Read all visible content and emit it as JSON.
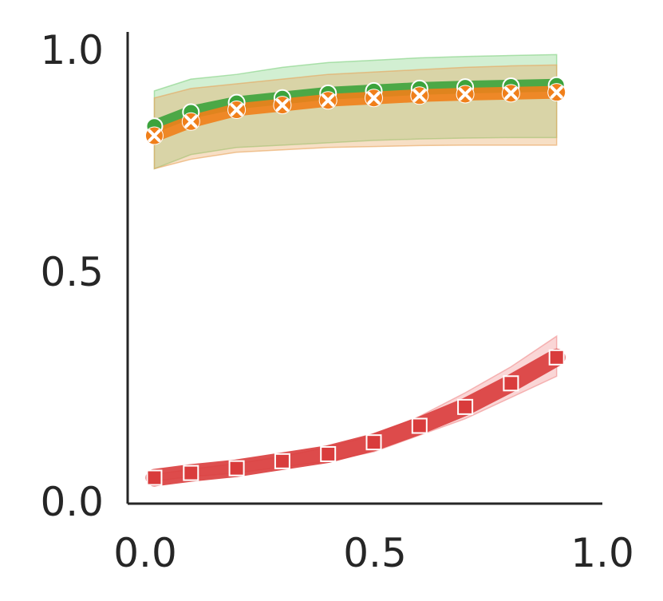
{
  "chart_data": {
    "type": "line",
    "title": "",
    "xlabel": "",
    "ylabel": "",
    "xlim": [
      0.0,
      1.0
    ],
    "ylim": [
      0.0,
      1.0
    ],
    "xticks": [
      "0.0",
      "0.5",
      "1.0"
    ],
    "yticks": [
      "0.0",
      "0.5",
      "1.0"
    ],
    "grid": false,
    "x": [
      0.02,
      0.1,
      0.2,
      0.3,
      0.4,
      0.5,
      0.6,
      0.7,
      0.8,
      0.9
    ],
    "series": [
      {
        "color": "#3ca33c",
        "marker": "circle",
        "values": [
          0.8,
          0.83,
          0.85,
          0.86,
          0.87,
          0.875,
          0.88,
          0.883,
          0.885,
          0.887
        ],
        "band_upper": [
          0.875,
          0.9,
          0.91,
          0.925,
          0.935,
          0.94,
          0.945,
          0.948,
          0.95,
          0.952
        ],
        "band_lower": [
          0.71,
          0.74,
          0.755,
          0.76,
          0.765,
          0.77,
          0.773,
          0.775,
          0.776,
          0.776
        ],
        "band_color": "#7fd17f"
      },
      {
        "color": "#f07f1a",
        "marker": "x",
        "values": [
          0.78,
          0.81,
          0.835,
          0.845,
          0.855,
          0.86,
          0.865,
          0.868,
          0.87,
          0.872
        ],
        "band_upper": [
          0.86,
          0.88,
          0.89,
          0.9,
          0.91,
          0.915,
          0.92,
          0.925,
          0.928,
          0.93
        ],
        "band_lower": [
          0.71,
          0.73,
          0.745,
          0.75,
          0.755,
          0.757,
          0.759,
          0.76,
          0.76,
          0.76
        ],
        "band_color": "#e8a45a"
      },
      {
        "color": "#d93c3c",
        "marker": "square",
        "values": [
          0.055,
          0.065,
          0.075,
          0.09,
          0.105,
          0.13,
          0.165,
          0.205,
          0.255,
          0.31
        ],
        "band_upper": [
          0.062,
          0.073,
          0.085,
          0.1,
          0.12,
          0.145,
          0.185,
          0.235,
          0.29,
          0.355
        ],
        "band_lower": [
          0.048,
          0.057,
          0.065,
          0.078,
          0.09,
          0.11,
          0.145,
          0.18,
          0.225,
          0.27
        ],
        "band_color": "#f08a8a"
      }
    ]
  }
}
